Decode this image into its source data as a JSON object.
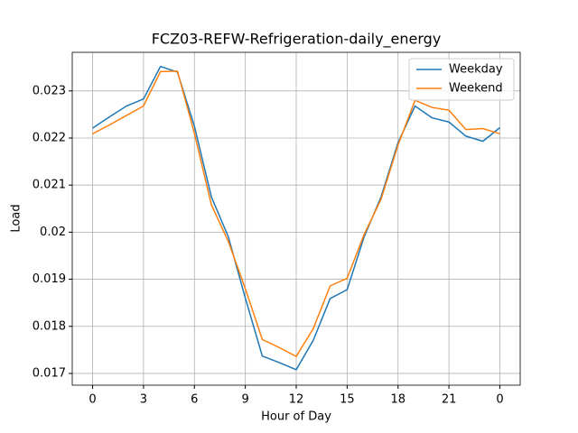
{
  "chart_data": {
    "type": "line",
    "title": "FCZ03-REFW-Refrigeration-daily_energy",
    "x_label": "Hour of Day",
    "y_label": "Load",
    "x": [
      0,
      1,
      2,
      3,
      4,
      5,
      6,
      7,
      8,
      9,
      10,
      11,
      12,
      13,
      14,
      15,
      16,
      17,
      18,
      19,
      20,
      21,
      22,
      23,
      24
    ],
    "series": [
      {
        "name": "Weekday",
        "color": "#1f77b4",
        "values": [
          0.02221,
          0.02245,
          0.02268,
          0.02283,
          0.02352,
          0.0234,
          0.02225,
          0.02075,
          0.0199,
          0.0186,
          0.01737,
          0.01723,
          0.01708,
          0.0177,
          0.01859,
          0.01878,
          0.0199,
          0.02075,
          0.0219,
          0.02268,
          0.02243,
          0.02234,
          0.02204,
          0.02193,
          0.02222
        ]
      },
      {
        "name": "Weekend",
        "color": "#ff7f0e",
        "values": [
          0.02209,
          0.02228,
          0.02248,
          0.02268,
          0.02341,
          0.02342,
          0.0221,
          0.02058,
          0.0198,
          0.0188,
          0.01772,
          0.01755,
          0.01736,
          0.01795,
          0.01886,
          0.01902,
          0.01995,
          0.0207,
          0.02185,
          0.0228,
          0.02265,
          0.02259,
          0.02218,
          0.0222,
          0.02209
        ]
      }
    ],
    "xlim": [
      -1.2,
      25.2
    ],
    "ylim": [
      0.01675,
      0.02382
    ],
    "xticks": [
      0,
      3,
      6,
      9,
      12,
      15,
      18,
      21,
      {
        "value": 24,
        "label": "0"
      }
    ],
    "yticks": [
      0.017,
      0.018,
      0.019,
      0.02,
      0.021,
      0.022,
      0.023
    ],
    "grid": true,
    "legend": "upper-right"
  }
}
